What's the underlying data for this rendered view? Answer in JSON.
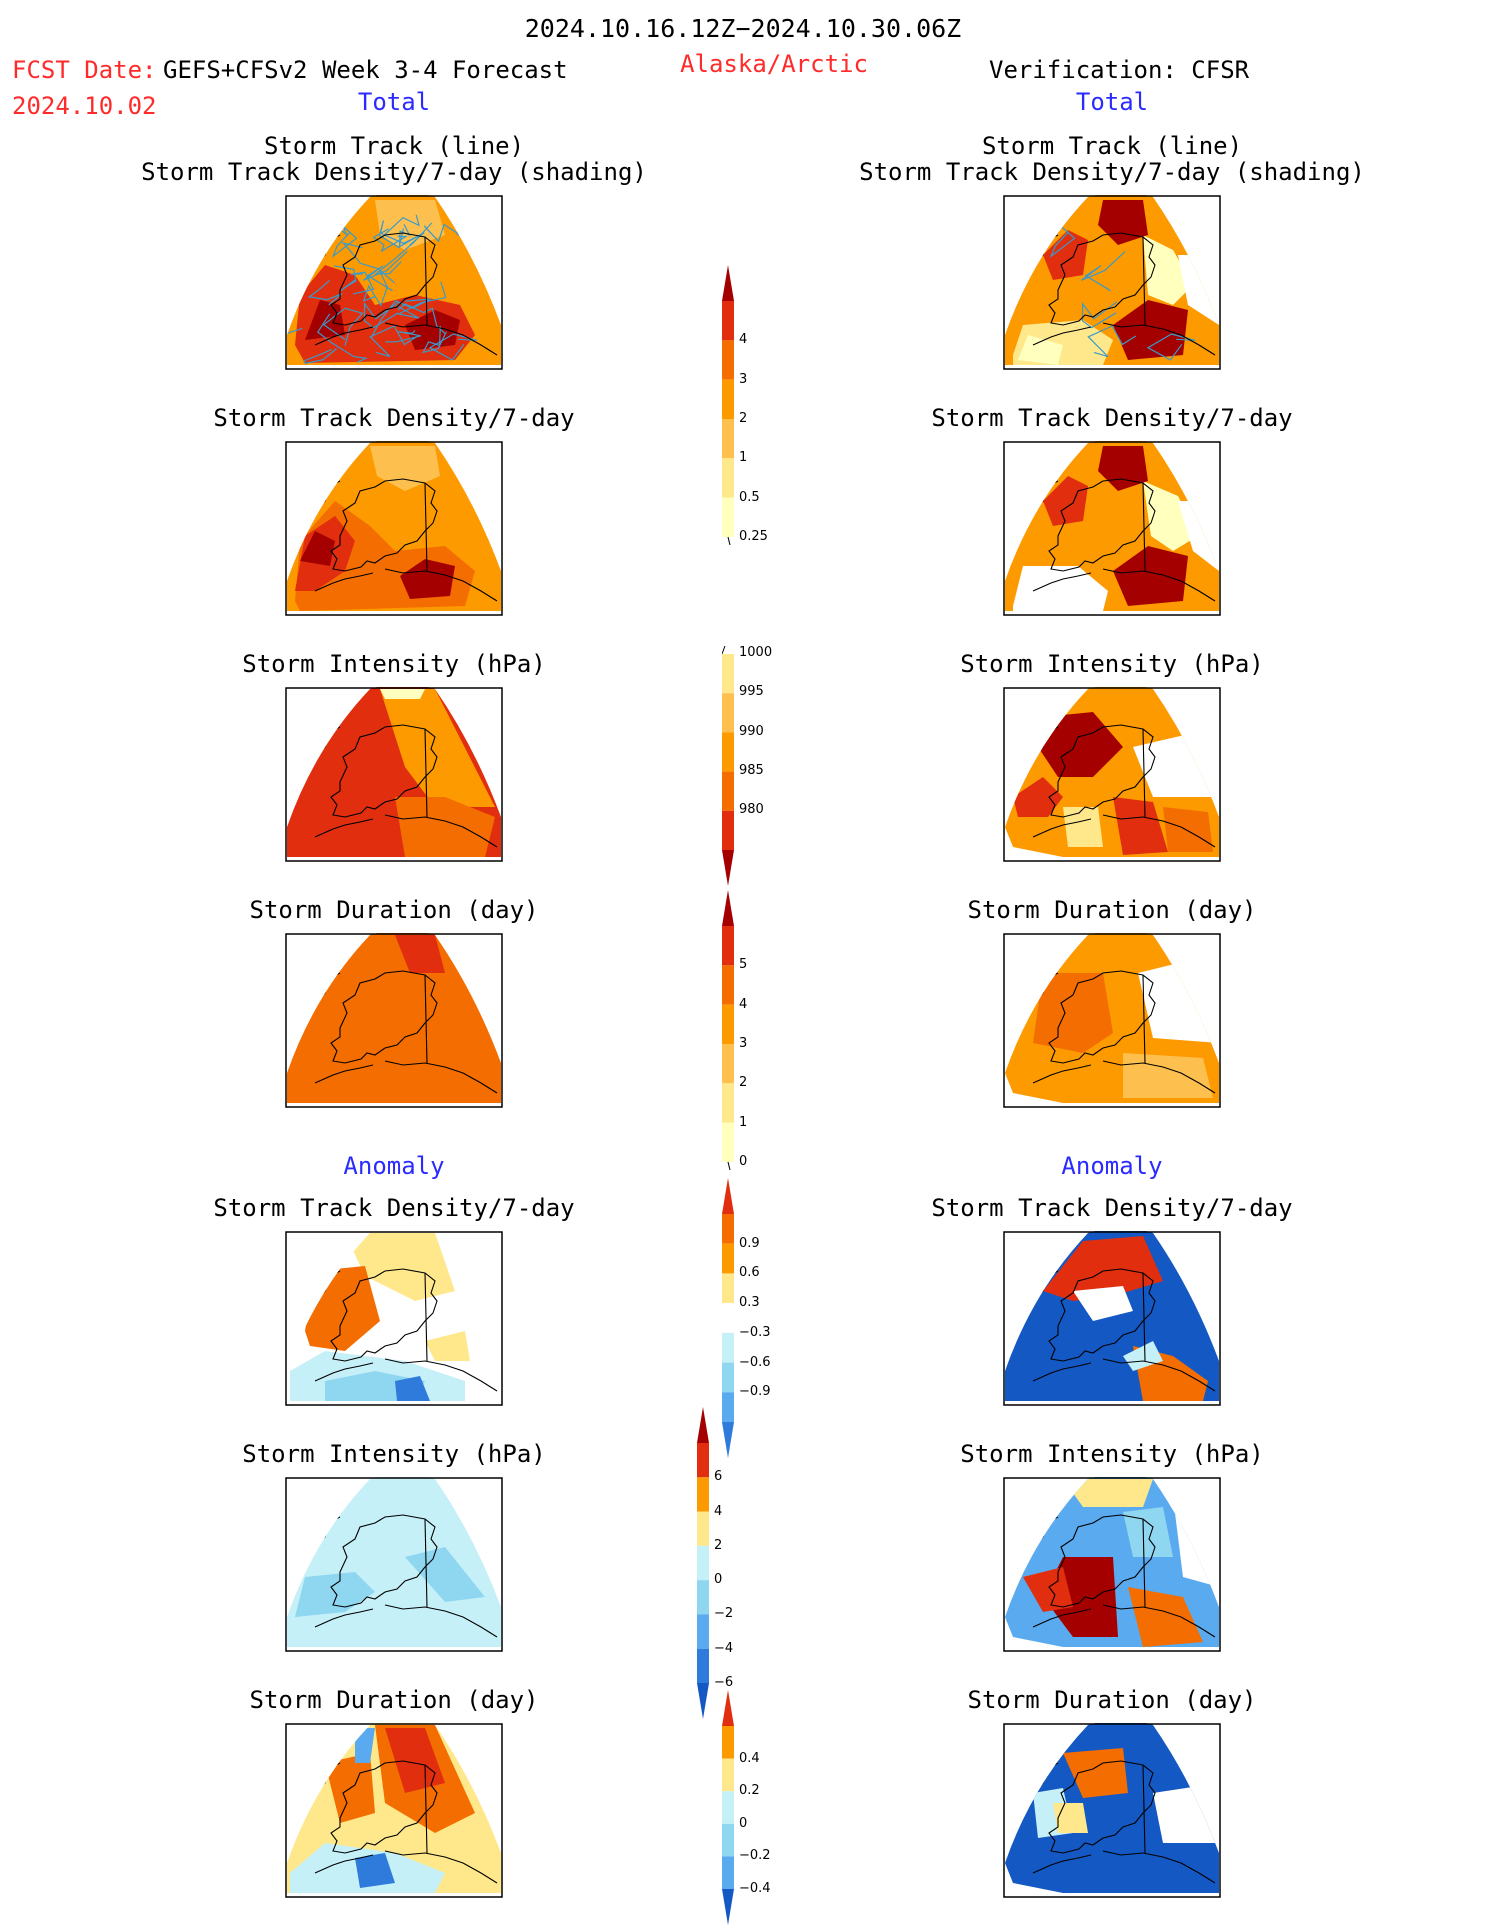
{
  "header": {
    "period": "2024.10.16.12Z−2024.10.30.06Z",
    "fcst_label": "FCST Date:",
    "fcst_model": "GEFS+CFSv2 Week 3-4 Forecast",
    "fcst_date": "2024.10.02",
    "region": "Alaska/Arctic",
    "verification": "Verification: CFSR"
  },
  "sections": {
    "total_left": "Total",
    "total_right": "Total",
    "anomaly_left": "Anomaly",
    "anomaly_right": "Anomaly"
  },
  "panel_titles": {
    "storm_track_line": "Storm Track (line)",
    "storm_track_density_shading": "Storm Track Density/7-day (shading)",
    "storm_track_density": "Storm Track Density/7-day",
    "storm_intensity": "Storm Intensity (hPa)",
    "storm_duration": "Storm Duration (day)"
  },
  "colorbars": {
    "density_total": [
      "4",
      "3",
      "2",
      "1",
      "0.5",
      "0.25"
    ],
    "intensity_total": [
      "1000",
      "995",
      "990",
      "985",
      "980"
    ],
    "duration_total": [
      "5",
      "4",
      "3",
      "2",
      "1",
      "0"
    ],
    "density_anomaly": [
      "0.9",
      "0.6",
      "0.3",
      "−0.3",
      "−0.6",
      "−0.9"
    ],
    "intensity_anomaly": [
      "6",
      "4",
      "2",
      "0",
      "−2",
      "−4",
      "−6"
    ],
    "duration_anomaly": [
      "0.4",
      "0.2",
      "0",
      "−0.2",
      "−0.4"
    ]
  },
  "colors": {
    "warm": [
      "#ffffbe",
      "#fee88b",
      "#fdc04f",
      "#fd9a00",
      "#f46d00",
      "#e02e0f",
      "#a50000"
    ],
    "cool": [
      "#c6f0f8",
      "#8fd6f0",
      "#5aaaef",
      "#2e7bdc",
      "#1458c4"
    ],
    "track": "#3a9ac9"
  }
}
